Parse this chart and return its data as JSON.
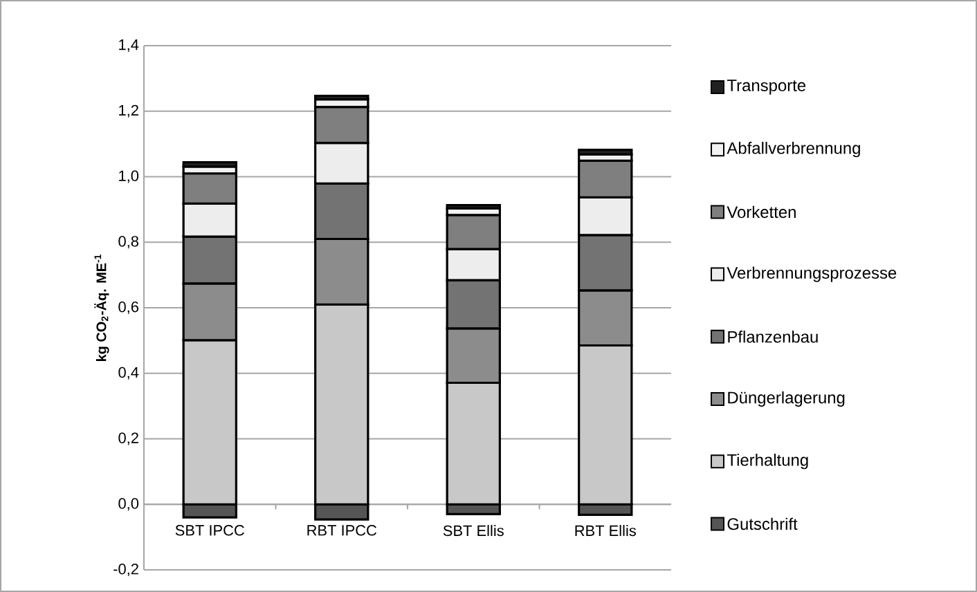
{
  "chart_data": {
    "type": "bar",
    "stacked": true,
    "ylabel": "kg CO$_{2}$-Äq. ME$^{-1}$",
    "categories": [
      "SBT IPCC",
      "RBT IPCC",
      "SBT Ellis",
      "RBT Ellis"
    ],
    "series": [
      {
        "name": "Gutschrift",
        "color": "#555555",
        "values": [
          -0.04,
          -0.046,
          -0.03,
          -0.032
        ]
      },
      {
        "name": "Tierhaltung",
        "color": "#c8c8c8",
        "values": [
          0.501,
          0.61,
          0.371,
          0.485
        ]
      },
      {
        "name": "Düngerlagerung",
        "color": "#8c8c8c",
        "values": [
          0.173,
          0.2,
          0.166,
          0.168
        ]
      },
      {
        "name": "Pflanzenbau",
        "color": "#737373",
        "values": [
          0.143,
          0.169,
          0.147,
          0.169
        ]
      },
      {
        "name": "Verbrennungsprozesse",
        "color": "#ededed",
        "values": [
          0.101,
          0.124,
          0.095,
          0.115
        ]
      },
      {
        "name": "Vorketten",
        "color": "#7f7f7f",
        "values": [
          0.092,
          0.11,
          0.104,
          0.112
        ]
      },
      {
        "name": "Abfallverbrennung",
        "color": "#f2f2f2",
        "values": [
          0.021,
          0.023,
          0.02,
          0.019
        ]
      },
      {
        "name": "Transporte",
        "color": "#222222",
        "values": [
          0.013,
          0.011,
          0.01,
          0.014
        ]
      }
    ],
    "ylim": [
      -0.2,
      1.4
    ],
    "yticks": [
      {
        "value": -0.2,
        "label": "-0,2"
      },
      {
        "value": 0,
        "label": "0,0"
      },
      {
        "value": 0.2,
        "label": "0,2"
      },
      {
        "value": 0.4,
        "label": "0,4"
      },
      {
        "value": 0.6,
        "label": "0,6"
      },
      {
        "value": 0.8,
        "label": "0,8"
      },
      {
        "value": 1.0,
        "label": "1,0"
      },
      {
        "value": 1.2,
        "label": "1,2"
      },
      {
        "value": 1.4,
        "label": "1,4"
      }
    ],
    "grid": "y",
    "legend": "right"
  }
}
